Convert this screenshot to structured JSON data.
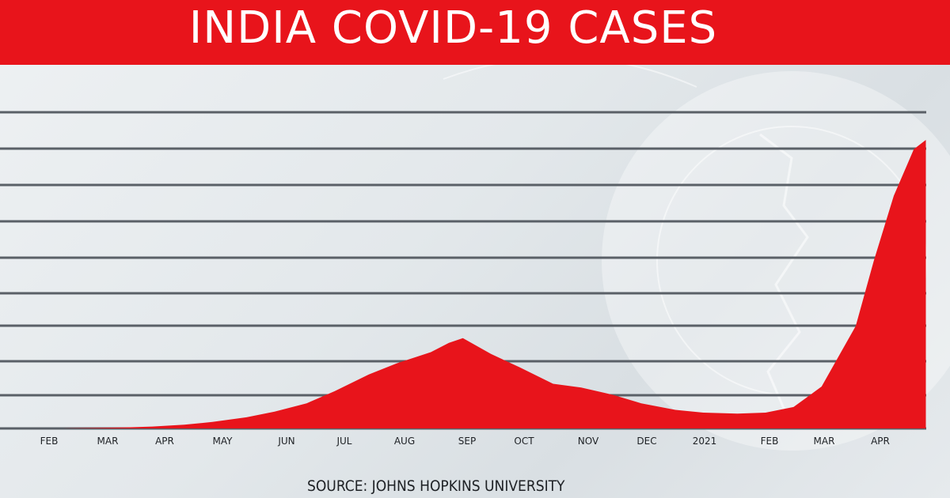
{
  "header": {
    "title": "INDIA COVID-19 CASES"
  },
  "footer": {
    "source": "SOURCE: JOHNS HOPKINS UNIVERSITY"
  },
  "colors": {
    "title_bar": "#e8141b",
    "area_fill": "#e8141b",
    "gridline": "#5a6067",
    "text": "#1e2125"
  },
  "chart_data": {
    "type": "area",
    "title": "INDIA COVID-19 CASES",
    "xlabel": "",
    "ylabel": "",
    "grid": true,
    "legend": "none",
    "x_tick_labels": [
      "FEB",
      "MAR",
      "APR",
      "MAY",
      "JUN",
      "JUL",
      "AUG",
      "SEP",
      "OCT",
      "NOV",
      "DEC",
      "2021",
      "FEB",
      "MAR",
      "APR"
    ],
    "xlim": [
      "2020-01-30",
      "2021-05-07"
    ],
    "series": [
      {
        "dates": [
          "2020-01-30",
          "2020-03-01",
          "2020-04-01",
          "2020-04-15",
          "2020-05-01",
          "2020-05-15",
          "2020-06-01",
          "2020-06-15",
          "2020-07-01",
          "2020-07-15",
          "2020-08-01",
          "2020-08-15",
          "2020-09-01",
          "2020-09-10",
          "2020-09-17",
          "2020-10-01",
          "2020-10-15",
          "2020-11-01",
          "2020-11-15",
          "2020-12-01",
          "2020-12-15",
          "2021-01-01",
          "2021-01-15",
          "2021-02-01",
          "2021-02-15",
          "2021-03-01",
          "2021-03-15",
          "2021-04-01",
          "2021-04-10",
          "2021-04-20",
          "2021-04-30",
          "2021-05-06"
        ],
        "values": [
          0,
          0,
          1,
          2,
          4,
          7,
          12,
          18,
          27,
          40,
          58,
          70,
          82,
          92,
          97,
          80,
          66,
          48,
          44,
          36,
          27,
          20,
          17,
          16,
          17,
          23,
          45,
          110,
          180,
          250,
          300,
          310
        ]
      }
    ]
  }
}
